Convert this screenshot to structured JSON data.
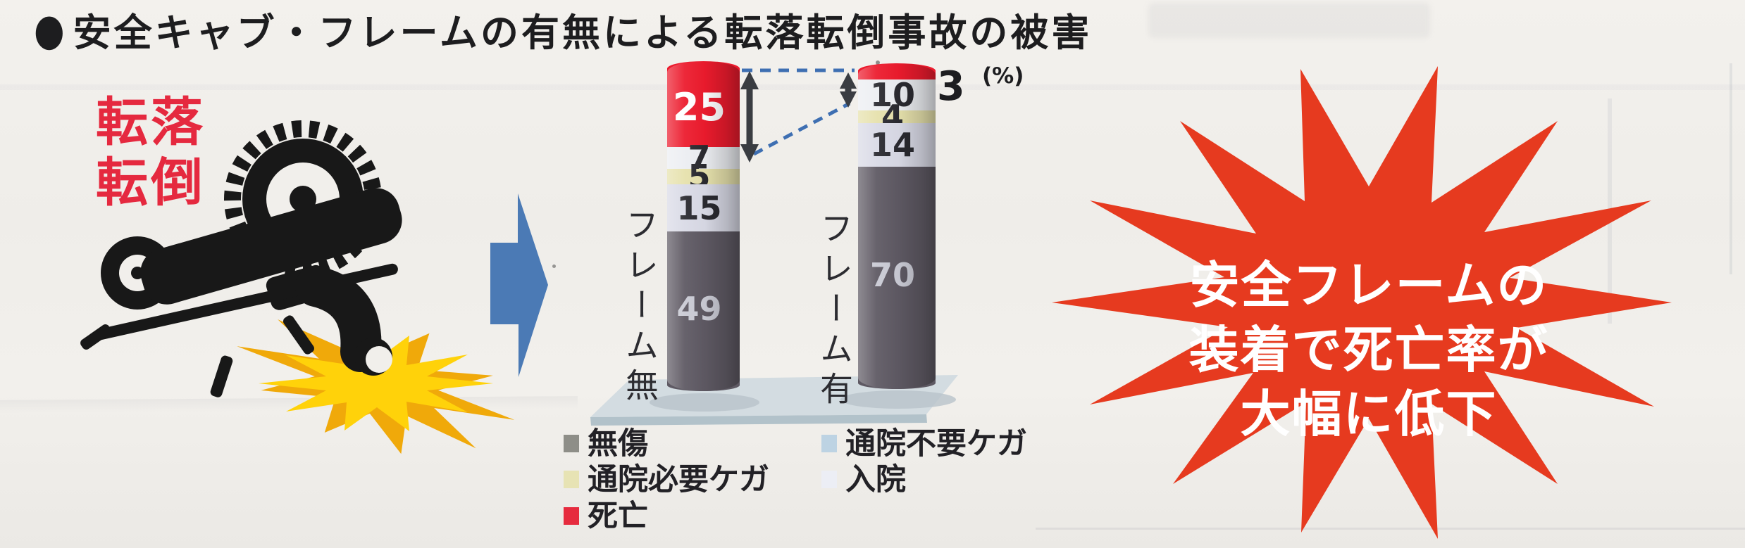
{
  "page": {
    "bg": "#f1efeb"
  },
  "header": {
    "bullet": "●",
    "title": "安全キャブ・フレームの有無による転落転倒事故の被害"
  },
  "accident_label": {
    "line1": "転落",
    "line2": "転倒",
    "color": "#e5293f"
  },
  "chart_data": {
    "type": "bar",
    "stacked": true,
    "unit_label": "(%)",
    "categories": [
      "フレーム無",
      "フレーム有"
    ],
    "series": [
      {
        "name": "死亡",
        "color": "#ec1b2d",
        "label_color": "#ffffff",
        "values": [
          25,
          3
        ]
      },
      {
        "name": "通院不要ケガ",
        "color": "#eceef2",
        "label_color": "#2a2a30",
        "values": [
          7,
          10
        ]
      },
      {
        "name": "通院必要ケガ",
        "color": "#e6e1ac",
        "label_color": "#2a2a30",
        "values": [
          5,
          4
        ]
      },
      {
        "name": "入院",
        "color": "#d9dae6",
        "label_color": "#2a2a30",
        "values": [
          15,
          14
        ]
      },
      {
        "name": "無傷",
        "color": "#5e5963",
        "label_color": "#c9cad4",
        "values": [
          49,
          70
        ]
      }
    ],
    "outside_label": {
      "bar": 1,
      "series": 0
    }
  },
  "legend": {
    "columns": [
      [
        {
          "label": "無傷",
          "color": "#8e8e88"
        },
        {
          "label": "通院必要ケガ",
          "color": "#e7e3b4"
        },
        {
          "label": "死亡",
          "color": "#e62b3e"
        }
      ],
      [
        {
          "label": "通院不要ケガ",
          "color": "#bdd3e3"
        },
        {
          "label": "入院",
          "color": "#eceef5"
        }
      ]
    ]
  },
  "callout": {
    "bg": "#e63a1f",
    "text_color": "#ffffff",
    "lines": [
      "安全フレームの",
      "装着で死亡率が",
      "大幅に低下"
    ]
  },
  "accents": {
    "blue_arrow": "#4b7ab5",
    "dashed_line": "#3e6fb2",
    "arrow_dark": "#3a3d42",
    "platform": "#d3dce1",
    "platform_edge": "#b2c2ca",
    "platform_shadow": "#b9c3ca"
  },
  "icon_colors": {
    "pictogram": "#181818",
    "flash_main": "#ffd20a",
    "flash_deep": "#f0a90a"
  }
}
